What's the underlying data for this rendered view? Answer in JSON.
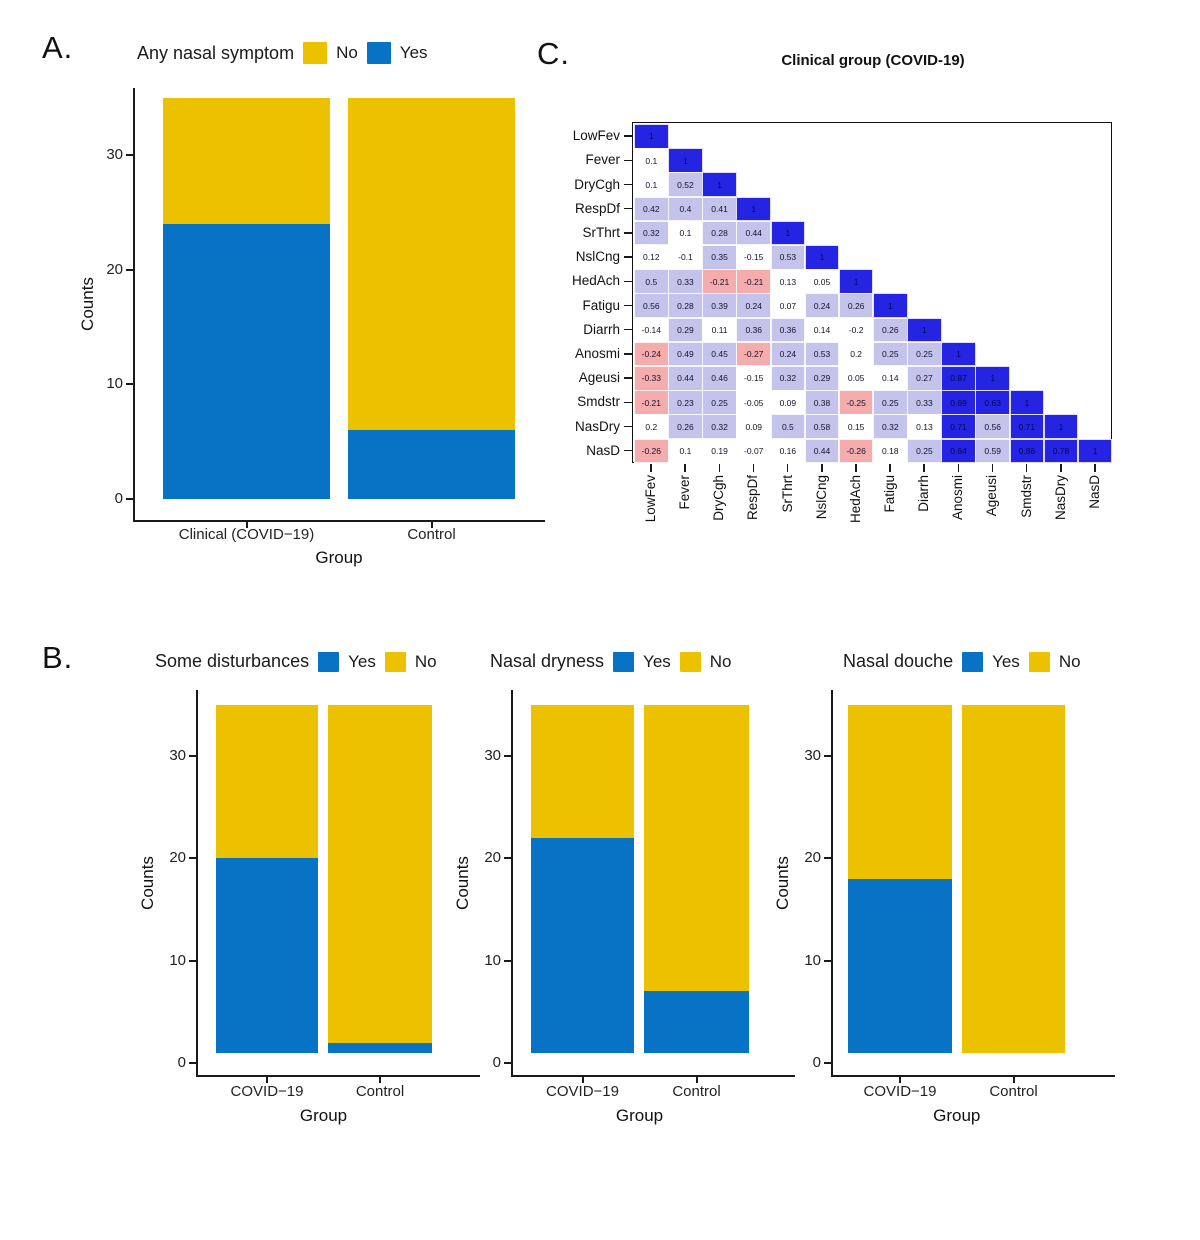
{
  "panels": {
    "a": {
      "label": "A."
    },
    "b": {
      "label": "B."
    },
    "c": {
      "label": "C."
    }
  },
  "colors": {
    "yes": "#0873c5",
    "no": "#ecc100",
    "heat_strong": "#2424e2",
    "heat_mid": "#c3c3ec",
    "heat_neg": "#f4acac",
    "heat_zero": "#ffffff"
  },
  "chart_data": [
    {
      "id": "a",
      "type": "bar",
      "stacked": true,
      "legend_title": "Any nasal symptom",
      "legend": [
        {
          "label": "No",
          "color": "no"
        },
        {
          "label": "Yes",
          "color": "yes"
        }
      ],
      "categories": [
        "Clinical (COVID−19)",
        "Control"
      ],
      "stack_order": [
        "Yes",
        "No"
      ],
      "bar_base": 0,
      "series": [
        {
          "name": "Yes",
          "values": [
            24,
            6
          ]
        },
        {
          "name": "No",
          "values": [
            11,
            29
          ]
        }
      ],
      "xlabel": "Group",
      "ylabel": "Counts",
      "yticks": [
        0,
        10,
        20,
        30
      ],
      "ylim": [
        0,
        36
      ]
    },
    {
      "id": "b1",
      "type": "bar",
      "stacked": true,
      "legend_title": "Some disturbances",
      "legend": [
        {
          "label": "Yes",
          "color": "yes"
        },
        {
          "label": "No",
          "color": "no"
        }
      ],
      "categories": [
        "COVID−19",
        "Control"
      ],
      "stack_order": [
        "Yes",
        "No"
      ],
      "bar_base": 1,
      "series": [
        {
          "name": "Yes",
          "values": [
            19,
            1
          ]
        },
        {
          "name": "No",
          "values": [
            15,
            33
          ]
        }
      ],
      "xlabel": "Group",
      "ylabel": "Counts",
      "yticks": [
        0,
        10,
        20,
        30
      ],
      "ylim": [
        0,
        36
      ]
    },
    {
      "id": "b2",
      "type": "bar",
      "stacked": true,
      "legend_title": "Nasal dryness",
      "legend": [
        {
          "label": "Yes",
          "color": "yes"
        },
        {
          "label": "No",
          "color": "no"
        }
      ],
      "categories": [
        "COVID−19",
        "Control"
      ],
      "stack_order": [
        "Yes",
        "No"
      ],
      "bar_base": 1,
      "series": [
        {
          "name": "Yes",
          "values": [
            21,
            6
          ]
        },
        {
          "name": "No",
          "values": [
            13,
            28
          ]
        }
      ],
      "xlabel": "Group",
      "ylabel": "Counts",
      "yticks": [
        0,
        10,
        20,
        30
      ],
      "ylim": [
        0,
        36
      ]
    },
    {
      "id": "b3",
      "type": "bar",
      "stacked": true,
      "legend_title": "Nasal douche",
      "legend": [
        {
          "label": "Yes",
          "color": "yes"
        },
        {
          "label": "No",
          "color": "no"
        }
      ],
      "categories": [
        "COVID−19",
        "Control"
      ],
      "stack_order": [
        "Yes",
        "No"
      ],
      "bar_base": 1,
      "series": [
        {
          "name": "Yes",
          "values": [
            17,
            0
          ]
        },
        {
          "name": "No",
          "values": [
            17,
            34
          ]
        }
      ],
      "xlabel": "Group",
      "ylabel": "Counts",
      "yticks": [
        0,
        10,
        20,
        30
      ],
      "ylim": [
        0,
        36
      ]
    },
    {
      "id": "c",
      "type": "heatmap",
      "title": "Clinical group (COVID-19)",
      "labels": [
        "LowFev",
        "Fever",
        "DryCgh",
        "RespDf",
        "SrThrt",
        "NslCng",
        "HedAch",
        "Fatigu",
        "Diarrh",
        "Anosmi",
        "Ageusi",
        "Smdstr",
        "NasDry",
        "NasD"
      ],
      "matrix": [
        [
          "1"
        ],
        [
          "0.1",
          "1"
        ],
        [
          "0.1",
          "0.52",
          "1"
        ],
        [
          "0.42",
          "0.4",
          "0.41",
          "1"
        ],
        [
          "0.32",
          "0.1",
          "0.28",
          "0.44",
          "1"
        ],
        [
          "0.12",
          "-0.1",
          "0.35",
          "-0.15",
          "0.53",
          "1"
        ],
        [
          "0.5",
          "0.33",
          "-0.21",
          "-0.21",
          "0.13",
          "0.05",
          "1"
        ],
        [
          "0.56",
          "0.28",
          "0.39",
          "0.24",
          "0.07",
          "0.24",
          "0.26",
          "1"
        ],
        [
          "-0.14",
          "0.29",
          "0.11",
          "0.36",
          "0.36",
          "0.14",
          "-0.2",
          "0.26",
          "1"
        ],
        [
          "-0.24",
          "0.49",
          "0.45",
          "-0.27",
          "0.24",
          "0.53",
          "0.2",
          "0.25",
          "0.25",
          "1"
        ],
        [
          "-0.33",
          "0.44",
          "0.46",
          "-0.15",
          "0.32",
          "0.29",
          "0.05",
          "0.14",
          "0.27",
          "0.87",
          "1"
        ],
        [
          "-0.21",
          "0.23",
          "0.25",
          "-0.05",
          "0.09",
          "0.38",
          "-0.25",
          "0.25",
          "0.33",
          "0.69",
          "0.63",
          "1"
        ],
        [
          "0.2",
          "0.26",
          "0.32",
          "0.09",
          "0.5",
          "0.58",
          "0.15",
          "0.32",
          "0.13",
          "0.71",
          "0.56",
          "0.71",
          "1"
        ],
        [
          "-0.26",
          "0.1",
          "0.19",
          "-0.07",
          "0.16",
          "0.44",
          "-0.26",
          "0.18",
          "0.25",
          "0.64",
          "0.59",
          "0.86",
          "0.78",
          "1"
        ]
      ],
      "color_scale": {
        "strong_positive_min": 0.6,
        "positive_min": 0.21,
        "negative_max": -0.21
      }
    }
  ]
}
